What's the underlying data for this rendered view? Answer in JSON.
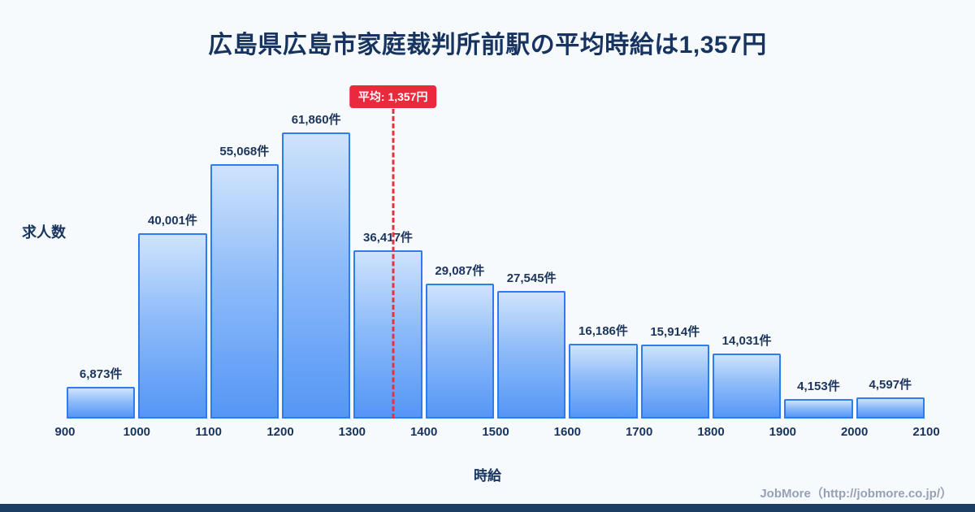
{
  "title": "広島県広島市家庭裁判所前駅の平均時給は1,357円",
  "average_badge": "平均: 1,357円",
  "y_axis_label": "求人数",
  "x_axis_label": "時給",
  "footer": "JobMore（http://jobmore.co.jp/）",
  "colors": {
    "title_navy": "#17335f",
    "bar_fill_top": "#cfe3fc",
    "bar_fill_bottom": "#5596f6",
    "bar_border": "#2f7cf0",
    "average_red": "#ea2a3c",
    "footer_gray": "#97a1b4",
    "bottom_strip_navy": "#1d3e63",
    "background": "#f7fafd"
  },
  "chart_data": {
    "type": "bar",
    "title": "広島県広島市家庭裁判所前駅の平均時給は1,357円",
    "xlabel": "時給",
    "ylabel": "求人数",
    "x_range": [
      900,
      2100
    ],
    "bin_width": 100,
    "x_ticks": [
      "900",
      "1000",
      "1100",
      "1200",
      "1300",
      "1400",
      "1500",
      "1600",
      "1700",
      "1800",
      "1900",
      "2000",
      "2100"
    ],
    "values": [
      6873,
      40001,
      55068,
      61860,
      36417,
      29087,
      27545,
      16186,
      15914,
      14031,
      4153,
      4597
    ],
    "bar_labels": [
      "6,873件",
      "40,001件",
      "55,068件",
      "61,860件",
      "36,417件",
      "29,087件",
      "27,545件",
      "16,186件",
      "15,914件",
      "14,031件",
      "4,153件",
      "4,597件"
    ],
    "average": 1357,
    "ylim": [
      0,
      65000
    ],
    "grid": false,
    "legend": false
  }
}
